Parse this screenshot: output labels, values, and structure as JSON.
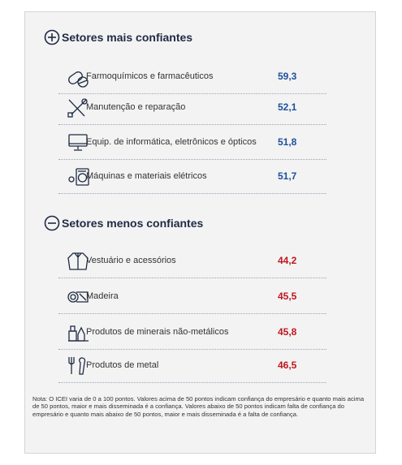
{
  "sections": [
    {
      "title": "Setores mais confiantes",
      "items": [
        {
          "label": "Farmoquímicos e farmacêuticos",
          "value": "59,3"
        },
        {
          "label": "Manutenção e reparação",
          "value": "52,1"
        },
        {
          "label": "Equip. de informática, eletrônicos e ópticos",
          "value": "51,8"
        },
        {
          "label": "Máquinas e materiais elétricos",
          "value": "51,7"
        }
      ]
    },
    {
      "title": "Setores menos confiantes",
      "items": [
        {
          "label": "Vestuário e acessórios",
          "value": "44,2"
        },
        {
          "label": "Madeira",
          "value": "45,5"
        },
        {
          "label": "Produtos de minerais não-metálicos",
          "value": "45,8"
        },
        {
          "label": "Produtos de metal",
          "value": "46,5"
        }
      ]
    }
  ],
  "note": "Nota: O ICEI varia de 0 a 100 pontos. Valores acima de 50 pontos indicam confiança do empresário e quanto mais acima de 50 pontos, maior e mais disseminada é a confiança. Valores abaixo de 50 pontos indicam falta de confiança do empresário e quanto mais abaixo de 50 pontos, maior e mais disseminada é a falta de confiança."
}
